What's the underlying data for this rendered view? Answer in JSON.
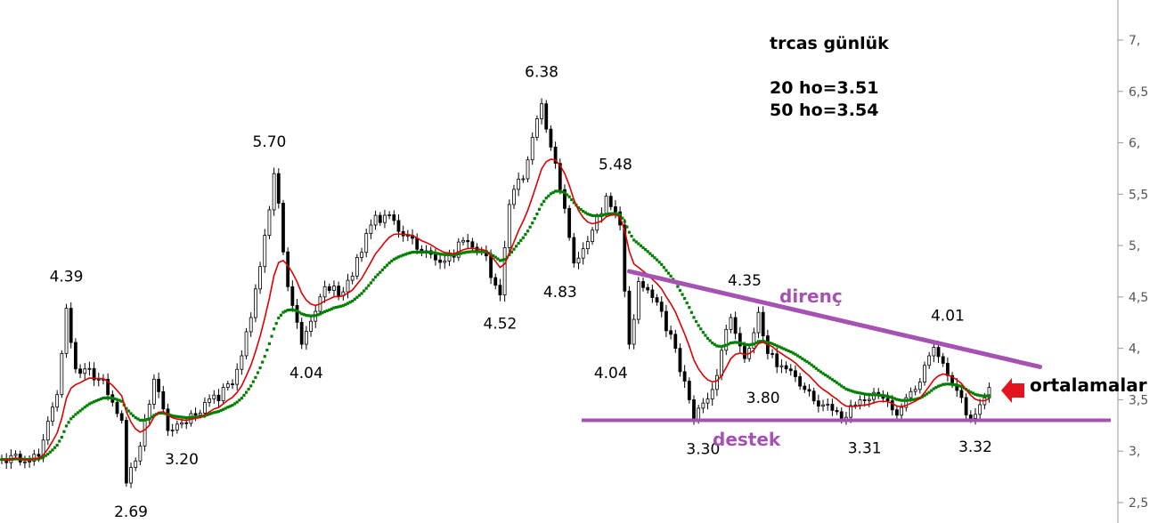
{
  "chart_data": {
    "type": "line",
    "title": "trcas günlük",
    "ma_notes": [
      "20 ho=3.51",
      "50 ho=3.54"
    ],
    "ylim": [
      2.4,
      7.4
    ],
    "y_ticks": [
      "7,",
      "6,5",
      "6,",
      "5,5",
      "5,",
      "4,5",
      "4,",
      "3,5",
      "3,",
      "2,5"
    ],
    "y_tick_values": [
      7,
      6.5,
      6,
      5.5,
      5,
      4.5,
      4,
      3.5,
      3,
      2.5
    ],
    "x_count": 215,
    "anchors": [
      [
        0,
        2.92
      ],
      [
        8,
        2.95
      ],
      [
        12,
        3.55
      ],
      [
        14,
        4.39
      ],
      [
        16,
        3.8
      ],
      [
        22,
        3.7
      ],
      [
        26,
        3.3
      ],
      [
        27,
        2.69
      ],
      [
        30,
        3.05
      ],
      [
        33,
        3.7
      ],
      [
        36,
        3.2
      ],
      [
        42,
        3.35
      ],
      [
        50,
        3.65
      ],
      [
        54,
        4.3
      ],
      [
        57,
        5.1
      ],
      [
        59,
        5.7
      ],
      [
        62,
        4.6
      ],
      [
        65,
        4.04
      ],
      [
        70,
        4.6
      ],
      [
        74,
        4.55
      ],
      [
        80,
        5.2
      ],
      [
        84,
        5.3
      ],
      [
        88,
        5.1
      ],
      [
        92,
        4.95
      ],
      [
        96,
        4.85
      ],
      [
        100,
        5.05
      ],
      [
        104,
        4.95
      ],
      [
        108,
        4.52
      ],
      [
        110,
        5.4
      ],
      [
        113,
        5.65
      ],
      [
        117,
        6.38
      ],
      [
        120,
        5.8
      ],
      [
        124,
        4.83
      ],
      [
        128,
        5.15
      ],
      [
        131,
        5.48
      ],
      [
        134,
        5.2
      ],
      [
        136,
        4.04
      ],
      [
        138,
        4.65
      ],
      [
        142,
        4.45
      ],
      [
        146,
        4.0
      ],
      [
        150,
        3.3
      ],
      [
        154,
        3.6
      ],
      [
        158,
        4.3
      ],
      [
        161,
        3.9
      ],
      [
        164,
        4.35
      ],
      [
        166,
        3.95
      ],
      [
        170,
        3.8
      ],
      [
        174,
        3.6
      ],
      [
        178,
        3.45
      ],
      [
        182,
        3.31
      ],
      [
        186,
        3.5
      ],
      [
        190,
        3.55
      ],
      [
        194,
        3.35
      ],
      [
        198,
        3.6
      ],
      [
        202,
        4.01
      ],
      [
        206,
        3.65
      ],
      [
        210,
        3.32
      ],
      [
        214,
        3.62
      ]
    ],
    "ma20_final": 3.51,
    "ma50_final": 3.54,
    "annotations": [
      {
        "text": "4.39",
        "x": 14,
        "y": 4.39,
        "pos": "above"
      },
      {
        "text": "2.69",
        "x": 28,
        "y": 2.69,
        "pos": "below"
      },
      {
        "text": "3.20",
        "x": 39,
        "y": 3.2,
        "pos": "below"
      },
      {
        "text": "5.70",
        "x": 58,
        "y": 5.7,
        "pos": "above"
      },
      {
        "text": "4.04",
        "x": 66,
        "y": 4.04,
        "pos": "below"
      },
      {
        "text": "4.52",
        "x": 108,
        "y": 4.52,
        "pos": "below"
      },
      {
        "text": "6.38",
        "x": 117,
        "y": 6.38,
        "pos": "above"
      },
      {
        "text": "4.83",
        "x": 121,
        "y": 4.83,
        "pos": "below"
      },
      {
        "text": "5.48",
        "x": 133,
        "y": 5.48,
        "pos": "above"
      },
      {
        "text": "4.04",
        "x": 132,
        "y": 4.04,
        "pos": "below"
      },
      {
        "text": "3.30",
        "x": 152,
        "y": 3.3,
        "pos": "below"
      },
      {
        "text": "4.35",
        "x": 161,
        "y": 4.35,
        "pos": "above"
      },
      {
        "text": "3.80",
        "x": 165,
        "y": 3.8,
        "pos": "below"
      },
      {
        "text": "3.31",
        "x": 187,
        "y": 3.31,
        "pos": "below"
      },
      {
        "text": "4.01",
        "x": 205,
        "y": 4.01,
        "pos": "above"
      },
      {
        "text": "3.32",
        "x": 215,
        "y": 3.32,
        "pos": "below"
      }
    ],
    "resistance": {
      "label": "direnç",
      "x1": 136,
      "y1": 4.75,
      "x2": 225,
      "y2": 3.82
    },
    "support": {
      "label": "destek",
      "x1": 131,
      "y1": 3.3,
      "x2": 255,
      "y2": 3.3
    },
    "arrow_label": "ortalamalar"
  },
  "colors": {
    "price": "#000000",
    "ma20": "#e00000",
    "ma50": "#008000",
    "resistance": "#a552b3",
    "support": "#a552b3",
    "arrow": "#e3141d",
    "axis": "#9a9a9a"
  }
}
